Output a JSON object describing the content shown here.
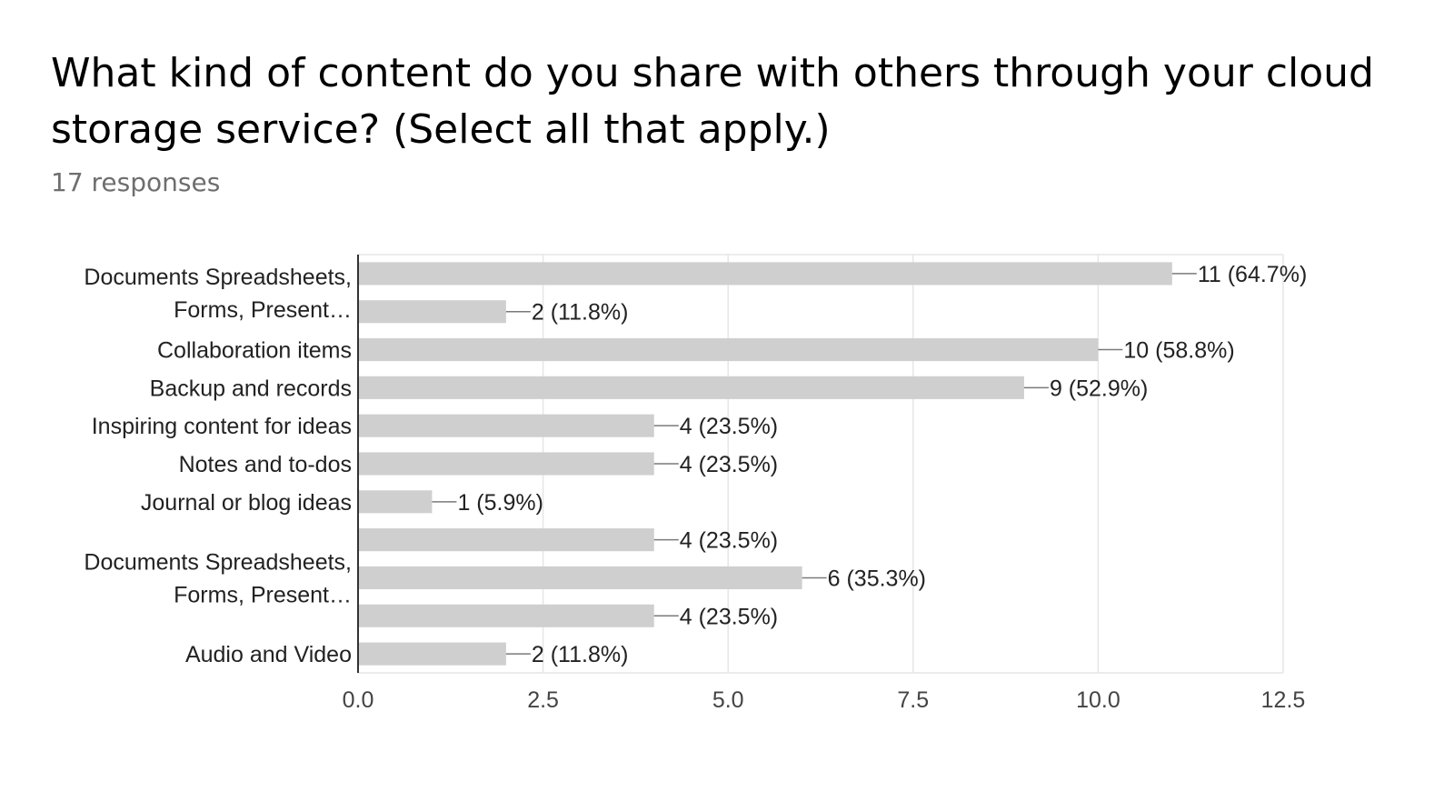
{
  "question": {
    "title": "What kind of content do you share with others through your cloud storage service? (Select all that apply.)",
    "responses": "17 responses"
  },
  "chart_data": {
    "type": "bar",
    "orientation": "horizontal",
    "title": "",
    "xlabel": "",
    "ylabel": "",
    "xlim": [
      0,
      12.5
    ],
    "x_ticks": [
      "0.0",
      "2.5",
      "5.0",
      "7.5",
      "10.0",
      "12.5"
    ],
    "x_tick_values": [
      0,
      2.5,
      5,
      7.5,
      10,
      12.5
    ],
    "grid": true,
    "legend": "none",
    "bar_color": "#cfcfcf",
    "bars": [
      {
        "value": 11,
        "label": "11 (64.7%)"
      },
      {
        "value": 2,
        "label": "2 (11.8%)"
      },
      {
        "value": 10,
        "label": "10 (58.8%)"
      },
      {
        "value": 9,
        "label": "9 (52.9%)"
      },
      {
        "value": 4,
        "label": "4 (23.5%)"
      },
      {
        "value": 4,
        "label": "4 (23.5%)"
      },
      {
        "value": 1,
        "label": "1 (5.9%)"
      },
      {
        "value": 4,
        "label": "4 (23.5%)"
      },
      {
        "value": 6,
        "label": "6 (35.3%)"
      },
      {
        "value": 4,
        "label": "4 (23.5%)"
      },
      {
        "value": 2,
        "label": "2 (11.8%)"
      }
    ],
    "category_labels": [
      {
        "lines": [
          "Documents Spreadsheets,",
          "Forms, Present…"
        ],
        "bars": [
          0,
          1
        ]
      },
      {
        "lines": [
          "Collaboration items"
        ],
        "bars": [
          2
        ]
      },
      {
        "lines": [
          "Backup and records"
        ],
        "bars": [
          3
        ]
      },
      {
        "lines": [
          "Inspiring content for ideas"
        ],
        "bars": [
          4
        ]
      },
      {
        "lines": [
          "Notes and to-dos"
        ],
        "bars": [
          5
        ]
      },
      {
        "lines": [
          "Journal or blog ideas"
        ],
        "bars": [
          6
        ]
      },
      {
        "lines": [
          "Documents Spreadsheets,",
          "Forms, Present…"
        ],
        "bars": [
          7,
          8,
          9
        ]
      },
      {
        "lines": [
          "Audio and Video"
        ],
        "bars": [
          10
        ]
      }
    ]
  }
}
